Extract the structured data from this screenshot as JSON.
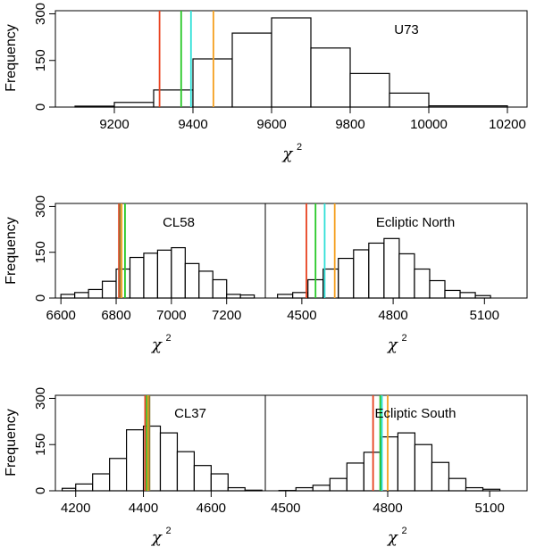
{
  "colors": {
    "red": "#e8411e",
    "green": "#28c828",
    "cyan": "#30e0d8",
    "orange": "#f5a020",
    "olive": "#8c7c3c"
  },
  "chart_data": [
    {
      "type": "bar",
      "label": "U73",
      "ylabel": "Frequency",
      "xlabel": "χ",
      "xlabel_sup": "2",
      "xlim": [
        9050,
        10250
      ],
      "ylim": [
        0,
        310
      ],
      "xticks": [
        9200,
        9400,
        9600,
        9800,
        10000,
        10200
      ],
      "yticks": [
        0,
        150,
        300
      ],
      "bins": [
        {
          "x0": 9100,
          "x1": 9200,
          "y": 3
        },
        {
          "x0": 9200,
          "x1": 9300,
          "y": 15
        },
        {
          "x0": 9300,
          "x1": 9400,
          "y": 55
        },
        {
          "x0": 9400,
          "x1": 9500,
          "y": 155
        },
        {
          "x0": 9500,
          "x1": 9600,
          "y": 238
        },
        {
          "x0": 9600,
          "x1": 9700,
          "y": 287
        },
        {
          "x0": 9700,
          "x1": 9800,
          "y": 190
        },
        {
          "x0": 9800,
          "x1": 9900,
          "y": 108
        },
        {
          "x0": 9900,
          "x1": 10000,
          "y": 45
        },
        {
          "x0": 10000,
          "x1": 10200,
          "y": 4
        }
      ],
      "vlines": [
        {
          "x": 9315,
          "color": "red"
        },
        {
          "x": 9370,
          "color": "green"
        },
        {
          "x": 9395,
          "color": "cyan"
        },
        {
          "x": 9452,
          "color": "orange"
        }
      ]
    },
    {
      "type": "bar",
      "label": "CL58",
      "ylabel": "Frequency",
      "xlabel": "χ",
      "xlabel_sup": "2",
      "xlim": [
        6580,
        7340
      ],
      "ylim": [
        0,
        310
      ],
      "xticks": [
        6600,
        6800,
        7000,
        7200
      ],
      "yticks": [
        0,
        150,
        300
      ],
      "bins": [
        {
          "x0": 6600,
          "x1": 6650,
          "y": 12
        },
        {
          "x0": 6650,
          "x1": 6700,
          "y": 18
        },
        {
          "x0": 6700,
          "x1": 6750,
          "y": 28
        },
        {
          "x0": 6750,
          "x1": 6800,
          "y": 55
        },
        {
          "x0": 6800,
          "x1": 6850,
          "y": 95
        },
        {
          "x0": 6850,
          "x1": 6900,
          "y": 133
        },
        {
          "x0": 6900,
          "x1": 6950,
          "y": 147
        },
        {
          "x0": 6950,
          "x1": 7000,
          "y": 157
        },
        {
          "x0": 7000,
          "x1": 7050,
          "y": 165
        },
        {
          "x0": 7050,
          "x1": 7100,
          "y": 113
        },
        {
          "x0": 7100,
          "x1": 7150,
          "y": 88
        },
        {
          "x0": 7150,
          "x1": 7200,
          "y": 60
        },
        {
          "x0": 7200,
          "x1": 7250,
          "y": 12
        },
        {
          "x0": 7250,
          "x1": 7300,
          "y": 10
        }
      ],
      "vlines": [
        {
          "x": 6810,
          "color": "red"
        },
        {
          "x": 6814,
          "color": "olive"
        },
        {
          "x": 6820,
          "color": "orange"
        },
        {
          "x": 6832,
          "color": "green"
        }
      ]
    },
    {
      "type": "bar",
      "label": "Ecliptic North",
      "ylabel": "",
      "xlabel": "χ",
      "xlabel_sup": "2",
      "xlim": [
        4380,
        5240
      ],
      "ylim": [
        0,
        310
      ],
      "xticks": [
        4500,
        4800,
        5100
      ],
      "yticks": [],
      "bins": [
        {
          "x0": 4420,
          "x1": 4470,
          "y": 12
        },
        {
          "x0": 4470,
          "x1": 4520,
          "y": 18
        },
        {
          "x0": 4520,
          "x1": 4570,
          "y": 60
        },
        {
          "x0": 4570,
          "x1": 4620,
          "y": 95
        },
        {
          "x0": 4620,
          "x1": 4670,
          "y": 130
        },
        {
          "x0": 4670,
          "x1": 4720,
          "y": 158
        },
        {
          "x0": 4720,
          "x1": 4770,
          "y": 180
        },
        {
          "x0": 4770,
          "x1": 4820,
          "y": 195
        },
        {
          "x0": 4820,
          "x1": 4870,
          "y": 145
        },
        {
          "x0": 4870,
          "x1": 4920,
          "y": 95
        },
        {
          "x0": 4920,
          "x1": 4970,
          "y": 57
        },
        {
          "x0": 4970,
          "x1": 5020,
          "y": 25
        },
        {
          "x0": 5020,
          "x1": 5070,
          "y": 18
        },
        {
          "x0": 5070,
          "x1": 5120,
          "y": 8
        }
      ],
      "vlines": [
        {
          "x": 4515,
          "color": "red"
        },
        {
          "x": 4545,
          "color": "green"
        },
        {
          "x": 4575,
          "color": "cyan"
        },
        {
          "x": 4608,
          "color": "orange"
        }
      ]
    },
    {
      "type": "bar",
      "label": "CL37",
      "ylabel": "Frequency",
      "xlabel": "χ",
      "xlabel_sup": "2",
      "xlim": [
        4140,
        4760
      ],
      "ylim": [
        0,
        310
      ],
      "xticks": [
        4200,
        4400,
        4600
      ],
      "yticks": [
        0,
        150,
        300
      ],
      "bins": [
        {
          "x0": 4160,
          "x1": 4200,
          "y": 8
        },
        {
          "x0": 4200,
          "x1": 4250,
          "y": 22
        },
        {
          "x0": 4250,
          "x1": 4300,
          "y": 55
        },
        {
          "x0": 4300,
          "x1": 4350,
          "y": 105
        },
        {
          "x0": 4350,
          "x1": 4400,
          "y": 198
        },
        {
          "x0": 4400,
          "x1": 4450,
          "y": 210
        },
        {
          "x0": 4450,
          "x1": 4500,
          "y": 188
        },
        {
          "x0": 4500,
          "x1": 4550,
          "y": 127
        },
        {
          "x0": 4550,
          "x1": 4600,
          "y": 82
        },
        {
          "x0": 4600,
          "x1": 4650,
          "y": 55
        },
        {
          "x0": 4650,
          "x1": 4700,
          "y": 10
        },
        {
          "x0": 4700,
          "x1": 4750,
          "y": 2
        }
      ],
      "vlines": [
        {
          "x": 4405,
          "color": "red"
        },
        {
          "x": 4410,
          "color": "green"
        },
        {
          "x": 4414,
          "color": "orange"
        },
        {
          "x": 4418,
          "color": "olive"
        }
      ]
    },
    {
      "type": "bar",
      "label": "Ecliptic South",
      "ylabel": "",
      "xlabel": "χ",
      "xlabel_sup": "2",
      "xlim": [
        4440,
        5210
      ],
      "ylim": [
        0,
        310
      ],
      "xticks": [
        4500,
        4800,
        5100
      ],
      "yticks": [],
      "bins": [
        {
          "x0": 4480,
          "x1": 4530,
          "y": 1
        },
        {
          "x0": 4530,
          "x1": 4580,
          "y": 10
        },
        {
          "x0": 4580,
          "x1": 4630,
          "y": 18
        },
        {
          "x0": 4630,
          "x1": 4680,
          "y": 40
        },
        {
          "x0": 4680,
          "x1": 4730,
          "y": 90
        },
        {
          "x0": 4730,
          "x1": 4780,
          "y": 125
        },
        {
          "x0": 4780,
          "x1": 4830,
          "y": 175
        },
        {
          "x0": 4830,
          "x1": 4880,
          "y": 188
        },
        {
          "x0": 4880,
          "x1": 4930,
          "y": 150
        },
        {
          "x0": 4930,
          "x1": 4980,
          "y": 92
        },
        {
          "x0": 4980,
          "x1": 5030,
          "y": 40
        },
        {
          "x0": 5030,
          "x1": 5080,
          "y": 10
        },
        {
          "x0": 5080,
          "x1": 5130,
          "y": 5
        }
      ],
      "vlines": [
        {
          "x": 4757,
          "color": "red"
        },
        {
          "x": 4778,
          "color": "green"
        },
        {
          "x": 4783,
          "color": "cyan"
        },
        {
          "x": 4800,
          "color": "orange"
        }
      ]
    }
  ]
}
